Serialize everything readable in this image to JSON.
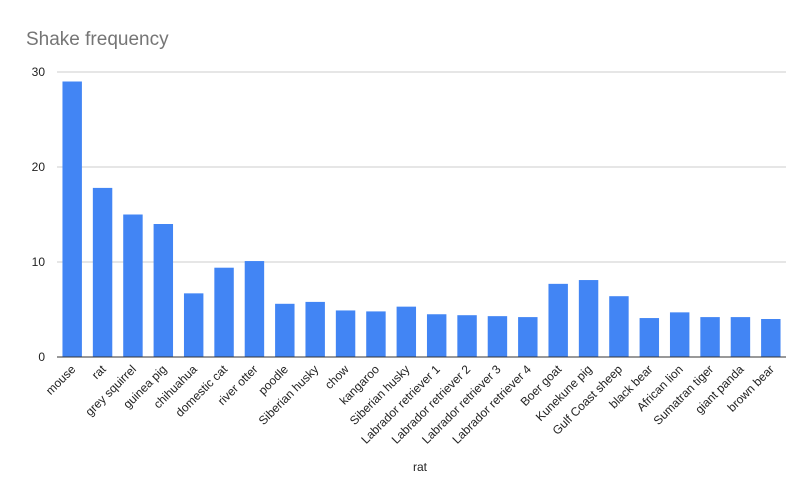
{
  "chart_data": {
    "type": "bar",
    "title": "Shake frequency",
    "xlabel": "rat",
    "ylabel": "",
    "ylim": [
      0,
      30
    ],
    "yticks": [
      0,
      10,
      20,
      30
    ],
    "grid": true,
    "legend": "none",
    "bar_color": "#4285f4",
    "categories": [
      "mouse",
      "rat",
      "grey squirrel",
      "guinea pig",
      "chihuahua",
      "domestic cat",
      "river otter",
      "poodle",
      "Siberian husky",
      "chow",
      "kangaroo",
      "Siberian husky",
      "Labrador retriever 1",
      "Labrador retriever 2",
      "Labrador retriever 3",
      "Labrador retriever 4",
      "Boer goat",
      "Kunekune pig",
      "Gulf Coast sheep",
      "black bear",
      "African lion",
      "Sumatran tiger",
      "giant panda",
      "brown bear"
    ],
    "values": [
      29,
      17.8,
      15,
      14,
      6.7,
      9.4,
      10.1,
      5.6,
      5.8,
      4.9,
      4.8,
      5.3,
      4.5,
      4.4,
      4.3,
      4.2,
      7.7,
      8.1,
      6.4,
      4.1,
      4.7,
      4.2,
      4.2,
      4.0
    ]
  }
}
